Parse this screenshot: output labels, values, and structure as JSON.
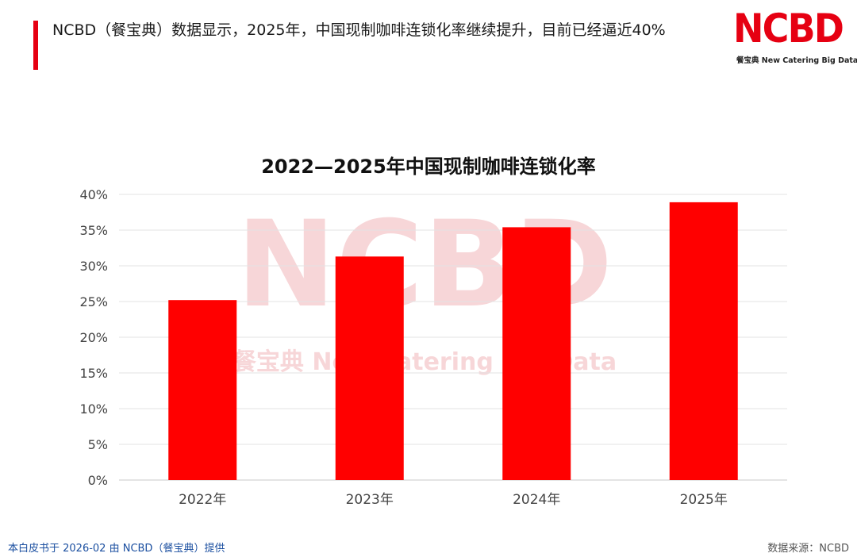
{
  "header": {
    "headline": "NCBD（餐宝典）数据显示，2025年，中国现制咖啡连锁化率继续提升，目前已经逼近40%"
  },
  "logo": {
    "mark": "NCBD",
    "subtitle": "餐宝典 New Catering Big Data"
  },
  "watermark": {
    "mark": "NCBD",
    "text": "餐宝典 New Catering Big Data"
  },
  "colors": {
    "accent": "#e60012",
    "bar": "#ff0000",
    "footer_link": "#1b4fa0"
  },
  "chart_data": {
    "type": "bar",
    "title": "2022—2025年中国现制咖啡连锁化率",
    "categories": [
      "2022年",
      "2023年",
      "2024年",
      "2025年"
    ],
    "values": [
      25.2,
      31.3,
      35.4,
      38.9
    ],
    "ylim": [
      0,
      40
    ],
    "yticks": [
      0,
      5,
      10,
      15,
      20,
      25,
      30,
      35,
      40
    ],
    "ytick_labels": [
      "0%",
      "5%",
      "10%",
      "15%",
      "20%",
      "25%",
      "30%",
      "35%",
      "40%"
    ],
    "grid": true,
    "legend": false
  },
  "footer": {
    "left": "本白皮书于 2026-02 由 NCBD（餐宝典）提供",
    "right": "数据来源：NCBD"
  }
}
